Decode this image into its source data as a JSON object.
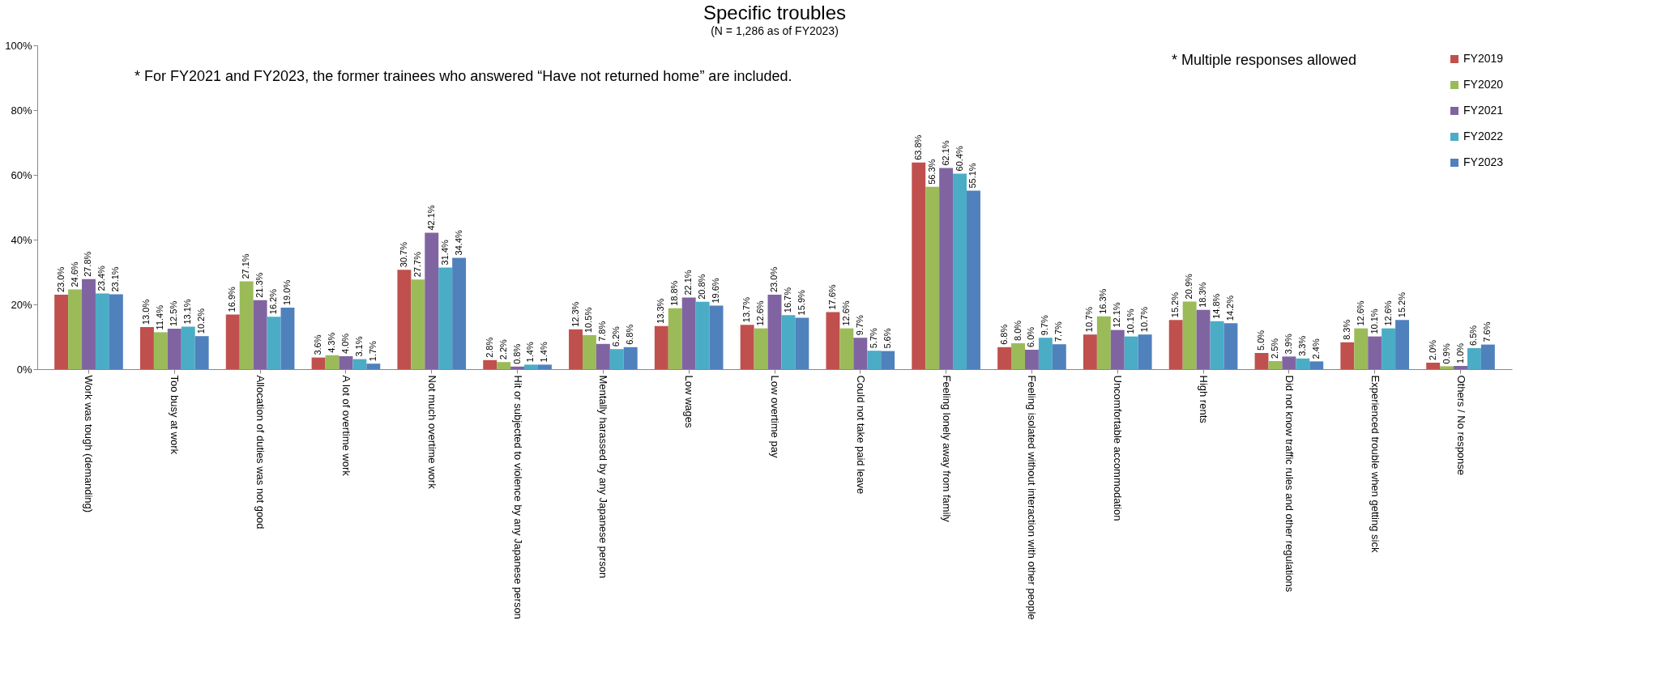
{
  "chart_data": {
    "type": "bar",
    "title": "Specific troubles",
    "subtitle": "(N = 1,286 as of FY2023)",
    "annotations": [
      "* For FY2021 and FY2023, the former trainees who answered “Have not returned home” are included.",
      "* Multiple responses allowed"
    ],
    "categories": [
      "Work was tough (demanding)",
      "Too busy at work",
      "Allocation of duties was not good",
      "A lot of overtime work",
      "Not much overtime work",
      "Hit or subjected to violence by any Japanese person",
      "Mentally harassed by any Japanese person",
      "Low wages",
      "Low overtime pay",
      "Could not take paid leave",
      "Feeling lonely away from family",
      "Feeling isolated without interaction with other people",
      "Uncomfortable accommodation",
      "High rents",
      "Did not know traffic rules and other regulations",
      "Experienced trouble when getting sick",
      "Others / No response"
    ],
    "series": [
      {
        "name": "FY2019",
        "color": "#c0504d",
        "values": [
          23.0,
          13.0,
          16.9,
          3.6,
          30.7,
          2.8,
          12.3,
          13.3,
          13.7,
          17.6,
          63.8,
          6.8,
          10.7,
          15.2,
          5.0,
          8.3,
          2.0
        ],
        "value_labels": [
          "23.0%",
          "13.0%",
          "16.9%",
          "3.6%",
          "30.7%",
          "2.8%",
          "12.3%",
          "13.3%",
          "13.7%",
          "17.6%",
          "63.8%",
          "6.8%",
          "10.7%",
          "15.2%",
          "5.0%",
          "8.3%",
          "2.0%"
        ]
      },
      {
        "name": "FY2020",
        "color": "#9bbb59",
        "values": [
          24.6,
          11.4,
          27.1,
          4.3,
          27.7,
          2.2,
          10.5,
          18.8,
          12.6,
          12.6,
          56.3,
          8.0,
          16.3,
          20.9,
          2.5,
          12.6,
          0.9
        ],
        "value_labels": [
          "24.6%",
          "11.4%",
          "27.1%",
          "4.3%",
          "27.7%",
          "2.2%",
          "10.5%",
          "18.8%",
          "12.6%",
          "12.6%",
          "56.3%",
          "8.0%",
          "16.3%",
          "20.9%",
          "2.5%",
          "12.6%",
          "0.9%"
        ]
      },
      {
        "name": "FY2021",
        "color": "#8064a2",
        "values": [
          27.8,
          12.5,
          21.3,
          4.0,
          42.1,
          0.8,
          7.8,
          22.1,
          23.0,
          9.7,
          62.1,
          6.0,
          12.1,
          18.3,
          3.9,
          10.1,
          1.0
        ],
        "value_labels": [
          "27.8%",
          "12.5%",
          "21.3%",
          "4.0%",
          "42.1%",
          "0.8%",
          "7.8%",
          "22.1%",
          "23.0%",
          "9.7%",
          "62.1%",
          "6.0%",
          "12.1%",
          "18.3%",
          "3.9%",
          "10.1%",
          "1.0%"
        ]
      },
      {
        "name": "FY2022",
        "color": "#4bacc6",
        "values": [
          23.4,
          13.1,
          16.2,
          3.1,
          31.4,
          1.4,
          6.2,
          20.8,
          16.7,
          5.7,
          60.4,
          9.7,
          10.1,
          14.8,
          3.3,
          12.6,
          6.5
        ],
        "value_labels": [
          "23.4%",
          "13.1%",
          "16.2%",
          "3.1%",
          "31.4%",
          "1.4%",
          "6.2%",
          "20.8%",
          "16.7%",
          "5.7%",
          "60.4%",
          "9.7%",
          "10.1%",
          "14.8%",
          "3.3%",
          "12.6%",
          "6.5%"
        ]
      },
      {
        "name": "FY2023",
        "color": "#4f81bd",
        "values": [
          23.1,
          10.2,
          19.0,
          1.7,
          34.4,
          1.4,
          6.8,
          19.6,
          15.9,
          5.6,
          55.1,
          7.7,
          10.7,
          14.2,
          2.4,
          15.2,
          7.6
        ],
        "value_labels": [
          "23.1%",
          "10.2%",
          "19.0%",
          "1.7%",
          "34.4%",
          "1.4%",
          "6.8%",
          "19.6%",
          "15.9%",
          "5.6%",
          "55.1%",
          "7.7%",
          "10.7%",
          "14.2%",
          "2.4%",
          "15.2%",
          "7.6%"
        ]
      }
    ],
    "ylim": [
      0,
      100
    ],
    "yticks": [
      {
        "value": 0,
        "label": "0%"
      },
      {
        "value": 20,
        "label": "20%"
      },
      {
        "value": 40,
        "label": "40%"
      },
      {
        "value": 60,
        "label": "60%"
      },
      {
        "value": 80,
        "label": "80%"
      },
      {
        "value": 100,
        "label": "100%"
      }
    ],
    "grid": false,
    "legend": "top right"
  }
}
